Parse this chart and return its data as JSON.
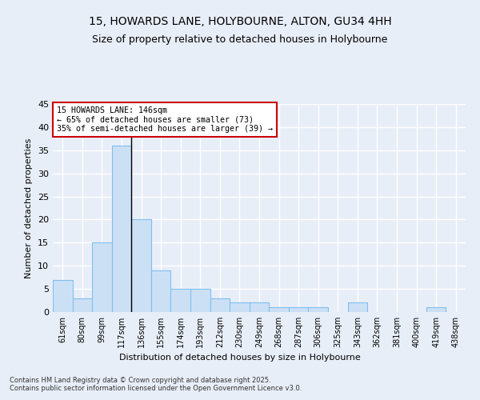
{
  "title": "15, HOWARDS LANE, HOLYBOURNE, ALTON, GU34 4HH",
  "subtitle": "Size of property relative to detached houses in Holybourne",
  "xlabel": "Distribution of detached houses by size in Holybourne",
  "ylabel": "Number of detached properties",
  "categories": [
    "61sqm",
    "80sqm",
    "99sqm",
    "117sqm",
    "136sqm",
    "155sqm",
    "174sqm",
    "193sqm",
    "212sqm",
    "230sqm",
    "249sqm",
    "268sqm",
    "287sqm",
    "306sqm",
    "325sqm",
    "343sqm",
    "362sqm",
    "381sqm",
    "400sqm",
    "419sqm",
    "438sqm"
  ],
  "values": [
    7,
    3,
    15,
    36,
    20,
    9,
    5,
    5,
    3,
    2,
    2,
    1,
    1,
    1,
    0,
    2,
    0,
    0,
    0,
    1,
    0
  ],
  "bar_color": "#cce0f5",
  "bar_edge_color": "#7fbfef",
  "property_line_index": 3.5,
  "property_line_color": "#000000",
  "annotation_text": "15 HOWARDS LANE: 146sqm\n← 65% of detached houses are smaller (73)\n35% of semi-detached houses are larger (39) →",
  "annotation_box_color": "#ffffff",
  "annotation_box_edge": "#cc0000",
  "ylim": [
    0,
    45
  ],
  "yticks": [
    0,
    5,
    10,
    15,
    20,
    25,
    30,
    35,
    40,
    45
  ],
  "background_color": "#e8eef8",
  "grid_color": "#ffffff",
  "footer_line1": "Contains HM Land Registry data © Crown copyright and database right 2025.",
  "footer_line2": "Contains public sector information licensed under the Open Government Licence v3.0."
}
